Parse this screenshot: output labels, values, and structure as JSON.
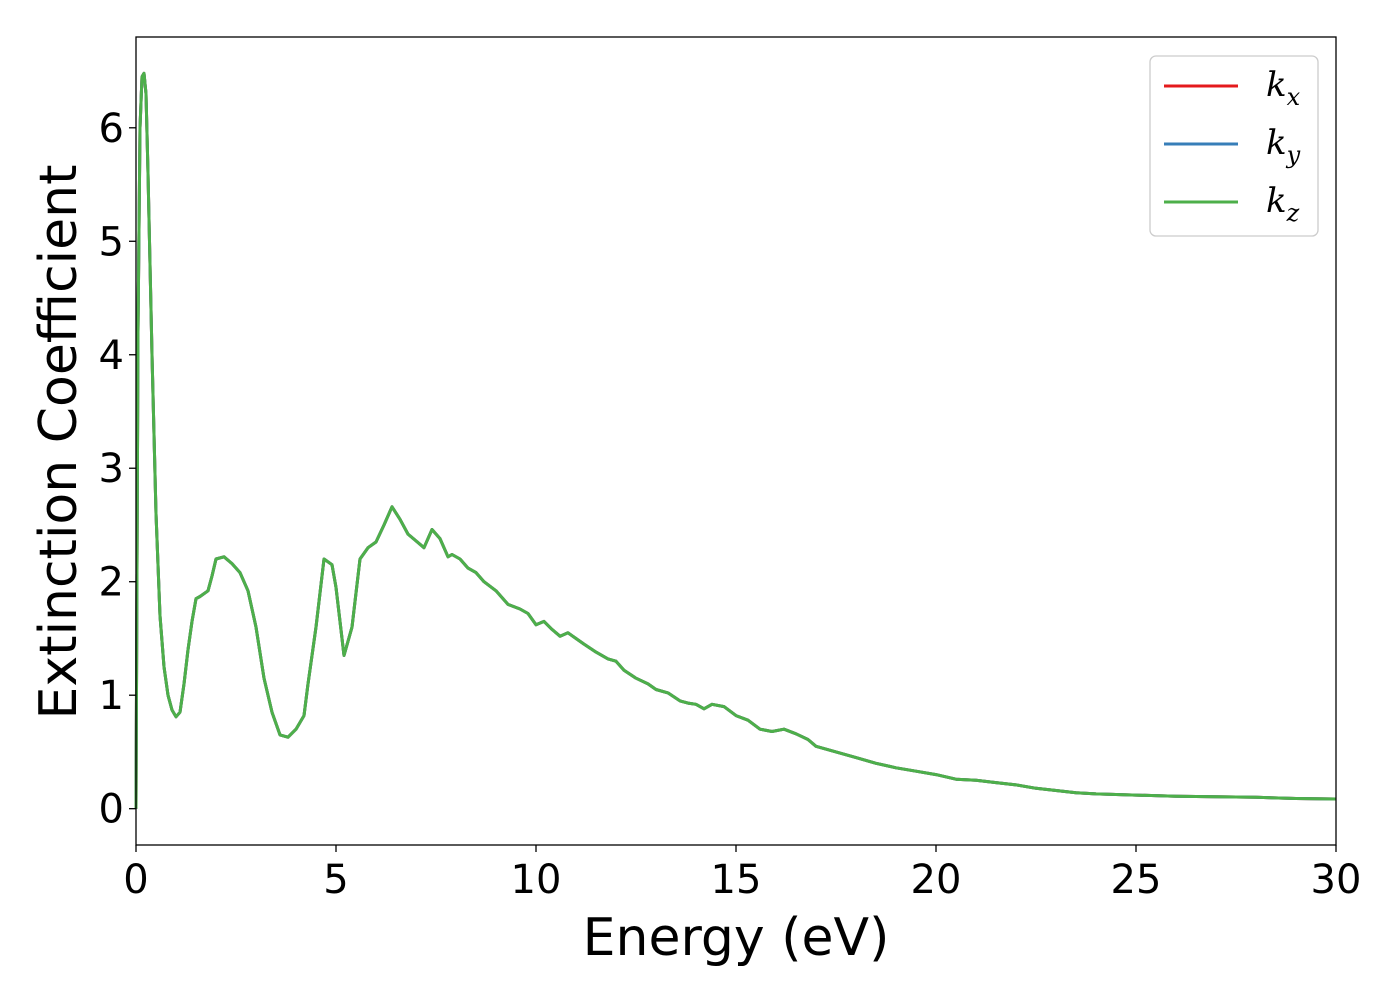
{
  "chart_data": {
    "type": "line",
    "xlabel": "Energy (eV)",
    "ylabel": "Extinction Coefficient",
    "xlim": [
      0,
      30
    ],
    "ylim": [
      -0.32,
      6.8
    ],
    "xticks": [
      0,
      5,
      10,
      15,
      20,
      25,
      30
    ],
    "yticks": [
      0,
      1,
      2,
      3,
      4,
      5,
      6
    ],
    "grid": false,
    "legend_position": "top-right",
    "series": [
      {
        "name": "k",
        "subscript": "x",
        "color": "#e41a1c"
      },
      {
        "name": "k",
        "subscript": "y",
        "color": "#377eb8"
      },
      {
        "name": "k",
        "subscript": "z",
        "color": "#4daf4a"
      }
    ],
    "x": [
      0,
      0.05,
      0.1,
      0.15,
      0.2,
      0.25,
      0.3,
      0.4,
      0.5,
      0.6,
      0.7,
      0.8,
      0.9,
      1.0,
      1.1,
      1.2,
      1.3,
      1.4,
      1.5,
      1.6,
      1.8,
      1.9,
      2.0,
      2.2,
      2.4,
      2.6,
      2.8,
      3.0,
      3.2,
      3.4,
      3.6,
      3.8,
      4.0,
      4.2,
      4.3,
      4.5,
      4.7,
      4.9,
      5.0,
      5.1,
      5.2,
      5.4,
      5.6,
      5.8,
      6.0,
      6.2,
      6.4,
      6.6,
      6.8,
      7.0,
      7.2,
      7.4,
      7.6,
      7.8,
      7.9,
      8.1,
      8.3,
      8.5,
      8.7,
      9.0,
      9.3,
      9.6,
      9.8,
      10.0,
      10.2,
      10.4,
      10.6,
      10.8,
      11.0,
      11.2,
      11.5,
      11.8,
      12.0,
      12.2,
      12.5,
      12.8,
      13.0,
      13.3,
      13.6,
      13.8,
      14.0,
      14.2,
      14.4,
      14.7,
      15.0,
      15.3,
      15.6,
      15.9,
      16.2,
      16.5,
      16.8,
      17.0,
      17.5,
      18.0,
      18.5,
      19.0,
      19.5,
      20.0,
      20.5,
      21.0,
      21.5,
      22.0,
      22.5,
      23.0,
      23.5,
      24.0,
      25.0,
      26.0,
      27.0,
      28.0,
      29.0,
      30.0
    ],
    "values": [
      0,
      4.2,
      6.0,
      6.45,
      6.48,
      6.3,
      5.6,
      4.0,
      2.6,
      1.7,
      1.25,
      1.0,
      0.87,
      0.81,
      0.85,
      1.1,
      1.4,
      1.65,
      1.85,
      1.87,
      1.92,
      2.05,
      2.2,
      2.22,
      2.16,
      2.08,
      1.92,
      1.6,
      1.15,
      0.85,
      0.65,
      0.63,
      0.7,
      0.82,
      1.1,
      1.6,
      2.2,
      2.15,
      1.95,
      1.65,
      1.35,
      1.6,
      2.2,
      2.3,
      2.35,
      2.5,
      2.66,
      2.55,
      2.42,
      2.36,
      2.3,
      2.46,
      2.38,
      2.22,
      2.24,
      2.2,
      2.12,
      2.08,
      2.0,
      1.92,
      1.8,
      1.76,
      1.72,
      1.62,
      1.65,
      1.58,
      1.52,
      1.55,
      1.5,
      1.45,
      1.38,
      1.32,
      1.3,
      1.22,
      1.15,
      1.1,
      1.05,
      1.02,
      0.95,
      0.93,
      0.92,
      0.88,
      0.92,
      0.9,
      0.82,
      0.78,
      0.7,
      0.68,
      0.7,
      0.66,
      0.61,
      0.55,
      0.5,
      0.45,
      0.4,
      0.36,
      0.33,
      0.3,
      0.26,
      0.25,
      0.23,
      0.21,
      0.18,
      0.16,
      0.14,
      0.13,
      0.12,
      0.11,
      0.105,
      0.1,
      0.09,
      0.085
    ]
  }
}
